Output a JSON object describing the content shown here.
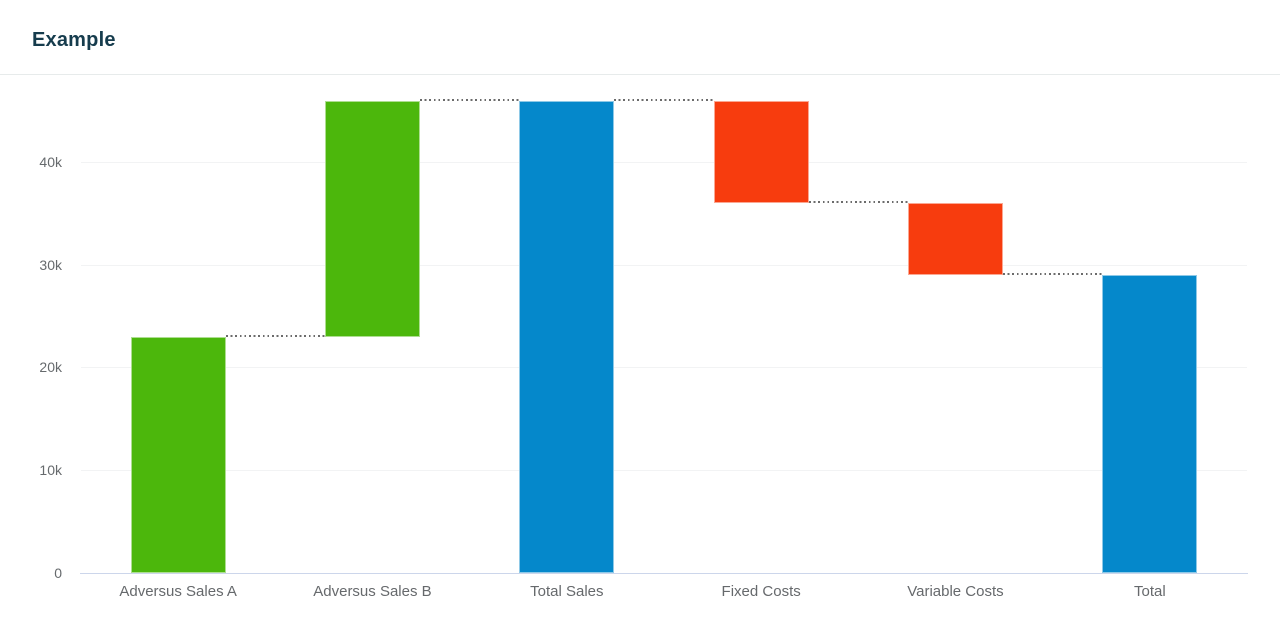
{
  "header": {
    "title": "Example"
  },
  "chart_data": {
    "type": "bar",
    "subtype": "waterfall",
    "title": "Example",
    "categories": [
      "Adversus Sales A",
      "Adversus Sales B",
      "Total Sales",
      "Fixed Costs",
      "Variable Costs",
      "Total"
    ],
    "points": [
      {
        "label": "Adversus Sales A",
        "value": 23000,
        "kind": "increase",
        "color": "#4cb70c"
      },
      {
        "label": "Adversus Sales B",
        "value": 23000,
        "kind": "increase",
        "color": "#4cb70c"
      },
      {
        "label": "Total Sales",
        "value": 46000,
        "kind": "sum",
        "color": "#0588cb"
      },
      {
        "label": "Fixed Costs",
        "value": -10000,
        "kind": "decrease",
        "color": "#f73c0e"
      },
      {
        "label": "Variable Costs",
        "value": -7000,
        "kind": "decrease",
        "color": "#f73c0e"
      },
      {
        "label": "Total",
        "value": 29000,
        "kind": "sum",
        "color": "#0588cb"
      }
    ],
    "y_axis": {
      "ticks": [
        0,
        10000,
        20000,
        30000,
        40000
      ],
      "tick_labels": [
        "0",
        "10k",
        "20k",
        "30k",
        "40k"
      ],
      "ylim": [
        0,
        47000
      ],
      "grid": true
    },
    "legend": "none",
    "colors": {
      "increase": "#4cb70c",
      "decrease": "#f73c0e",
      "total": "#0588cb",
      "connector_dots": "#6b6b6b",
      "axis_line": "#ccd6eb",
      "grid_line": "#f2f3f4",
      "axis_label": "#66696c",
      "title": "#163c4d",
      "header_divider": "#e7ebeb"
    }
  }
}
